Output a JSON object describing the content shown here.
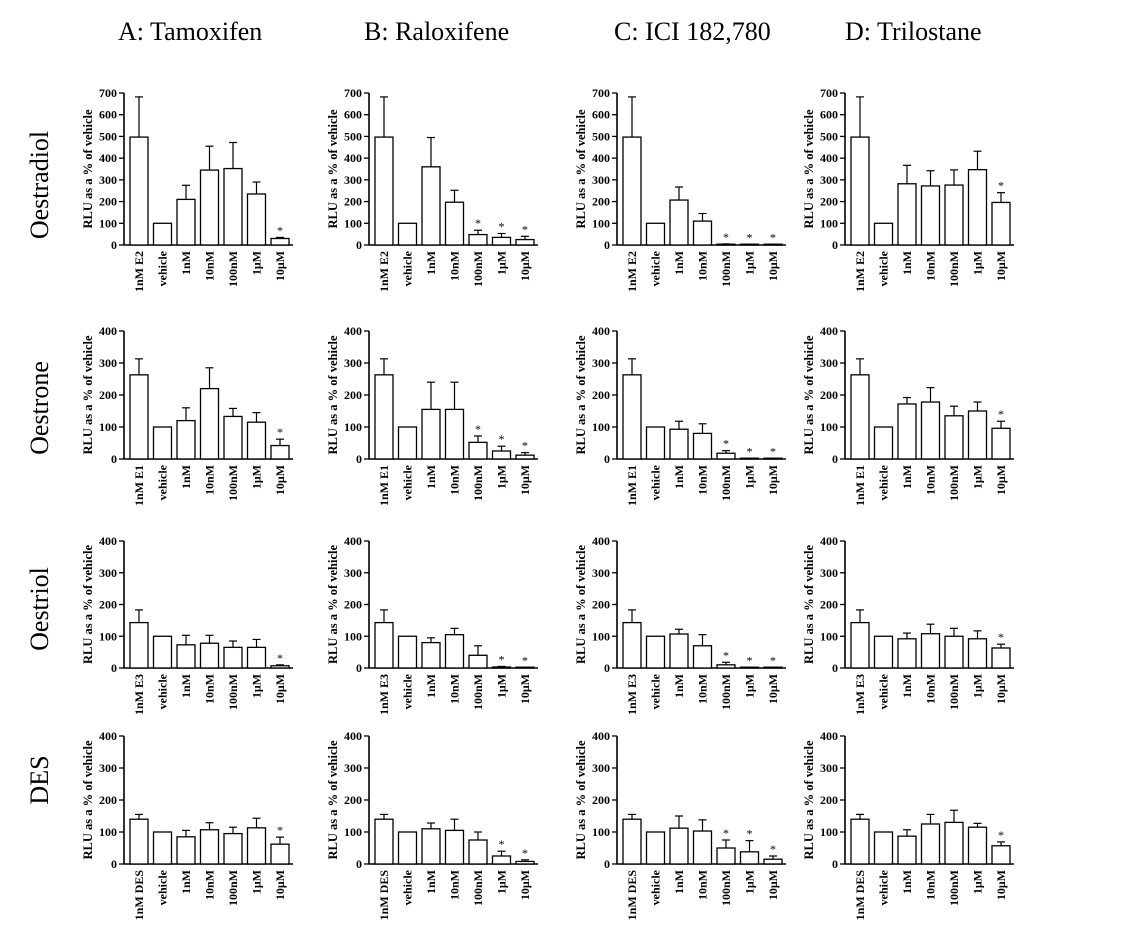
{
  "figure": {
    "columns": [
      "A: Tamoxifen",
      "B: Raloxifene",
      "C: ICI 182,780",
      "D: Trilostane"
    ],
    "rows": [
      "Oestradiol",
      "Oestrone",
      "Oestriol",
      "DES"
    ],
    "ylabel": "RLU as a % of vehicle"
  },
  "chart_data": [
    {
      "type": "bar",
      "panel": "A1",
      "row": "Oestradiol",
      "column": "A: Tamoxifen",
      "categories": [
        "1nM E2",
        "vehicle",
        "1nM",
        "10nM",
        "100nM",
        "1μM",
        "10μM"
      ],
      "values": [
        497,
        100,
        210,
        345,
        352,
        235,
        30
      ],
      "errors": [
        185,
        0,
        65,
        110,
        120,
        55,
        5
      ],
      "significant": [
        false,
        false,
        false,
        false,
        false,
        false,
        true
      ],
      "ylim": [
        0,
        700
      ],
      "yticks": [
        0,
        100,
        200,
        300,
        400,
        500,
        600,
        700
      ],
      "ylabel": "RLU as a % of vehicle"
    },
    {
      "type": "bar",
      "panel": "B1",
      "row": "Oestradiol",
      "column": "B: Raloxifene",
      "categories": [
        "1nM E2",
        "vehicle",
        "1nM",
        "10nM",
        "100nM",
        "1μM",
        "10μM"
      ],
      "values": [
        497,
        100,
        360,
        197,
        48,
        35,
        25
      ],
      "errors": [
        185,
        0,
        135,
        55,
        20,
        18,
        15
      ],
      "significant": [
        false,
        false,
        false,
        false,
        true,
        true,
        true
      ],
      "ylim": [
        0,
        700
      ],
      "yticks": [
        0,
        100,
        200,
        300,
        400,
        500,
        600,
        700
      ],
      "ylabel": "RLU as a % of vehicle"
    },
    {
      "type": "bar",
      "panel": "C1",
      "row": "Oestradiol",
      "column": "C: ICI 182,780",
      "categories": [
        "1nM E2",
        "vehicle",
        "1nM",
        "10nM",
        "100nM",
        "1μM",
        "10μM"
      ],
      "values": [
        497,
        100,
        207,
        110,
        3,
        2,
        2
      ],
      "errors": [
        185,
        0,
        60,
        35,
        2,
        1,
        1
      ],
      "significant": [
        false,
        false,
        false,
        false,
        true,
        true,
        true
      ],
      "ylim": [
        0,
        700
      ],
      "yticks": [
        0,
        100,
        200,
        300,
        400,
        500,
        600,
        700
      ],
      "ylabel": "RLU as a % of vehicle"
    },
    {
      "type": "bar",
      "panel": "D1",
      "row": "Oestradiol",
      "column": "D: Trilostane",
      "categories": [
        "1nM E2",
        "vehicle",
        "1nM",
        "10nM",
        "100nM",
        "1μM",
        "10μM"
      ],
      "values": [
        497,
        100,
        282,
        272,
        276,
        347,
        196
      ],
      "errors": [
        185,
        0,
        85,
        70,
        70,
        85,
        45
      ],
      "significant": [
        false,
        false,
        false,
        false,
        false,
        false,
        true
      ],
      "ylim": [
        0,
        700
      ],
      "yticks": [
        0,
        100,
        200,
        300,
        400,
        500,
        600,
        700
      ],
      "ylabel": "RLU as a % of vehicle"
    },
    {
      "type": "bar",
      "panel": "A2",
      "row": "Oestrone",
      "column": "A: Tamoxifen",
      "categories": [
        "1nM E1",
        "vehicle",
        "1nM",
        "10nM",
        "100nM",
        "1μM",
        "10μM"
      ],
      "values": [
        263,
        100,
        120,
        220,
        133,
        115,
        42
      ],
      "errors": [
        50,
        0,
        40,
        65,
        25,
        30,
        20
      ],
      "significant": [
        false,
        false,
        false,
        false,
        false,
        false,
        true
      ],
      "ylim": [
        0,
        400
      ],
      "yticks": [
        0,
        100,
        200,
        300,
        400
      ],
      "ylabel": "RLU as a % of vehicle"
    },
    {
      "type": "bar",
      "panel": "B2",
      "row": "Oestrone",
      "column": "B: Raloxifene",
      "categories": [
        "1nM E1",
        "vehicle",
        "1nM",
        "10nM",
        "100nM",
        "1μM",
        "10μM"
      ],
      "values": [
        263,
        100,
        155,
        155,
        52,
        25,
        12
      ],
      "errors": [
        50,
        0,
        85,
        85,
        20,
        15,
        8
      ],
      "significant": [
        false,
        false,
        false,
        false,
        true,
        true,
        true
      ],
      "ylim": [
        0,
        400
      ],
      "yticks": [
        0,
        100,
        200,
        300,
        400
      ],
      "ylabel": "RLU as a % of vehicle"
    },
    {
      "type": "bar",
      "panel": "C2",
      "row": "Oestrone",
      "column": "C: ICI 182,780",
      "categories": [
        "1nM E1",
        "vehicle",
        "1nM",
        "10nM",
        "100nM",
        "1μM",
        "10μM"
      ],
      "values": [
        263,
        100,
        93,
        80,
        18,
        1,
        1
      ],
      "errors": [
        50,
        0,
        25,
        30,
        8,
        1,
        1
      ],
      "significant": [
        false,
        false,
        false,
        false,
        true,
        true,
        true
      ],
      "ylim": [
        0,
        400
      ],
      "yticks": [
        0,
        100,
        200,
        300,
        400
      ],
      "ylabel": "RLU as a % of vehicle"
    },
    {
      "type": "bar",
      "panel": "D2",
      "row": "Oestrone",
      "column": "D: Trilostane",
      "categories": [
        "1nM E1",
        "vehicle",
        "1nM",
        "10nM",
        "100nM",
        "1μM",
        "10μM"
      ],
      "values": [
        263,
        100,
        172,
        178,
        135,
        150,
        96
      ],
      "errors": [
        50,
        0,
        20,
        45,
        30,
        28,
        22
      ],
      "significant": [
        false,
        false,
        false,
        false,
        false,
        false,
        true
      ],
      "ylim": [
        0,
        400
      ],
      "yticks": [
        0,
        100,
        200,
        300,
        400
      ],
      "ylabel": "RLU as a % of vehicle"
    },
    {
      "type": "bar",
      "panel": "A3",
      "row": "Oestriol",
      "column": "A: Tamoxifen",
      "categories": [
        "1nM E3",
        "vehicle",
        "1nM",
        "10nM",
        "100nM",
        "1μM",
        "10μM"
      ],
      "values": [
        143,
        100,
        73,
        78,
        65,
        65,
        7
      ],
      "errors": [
        40,
        0,
        30,
        25,
        20,
        25,
        3
      ],
      "significant": [
        false,
        false,
        false,
        false,
        false,
        false,
        true
      ],
      "ylim": [
        0,
        400
      ],
      "yticks": [
        0,
        100,
        200,
        300,
        400
      ],
      "ylabel": "RLU as a % of vehicle"
    },
    {
      "type": "bar",
      "panel": "B3",
      "row": "Oestriol",
      "column": "B: Raloxifene",
      "categories": [
        "1nM E3",
        "vehicle",
        "1nM",
        "10nM",
        "100nM",
        "1μM",
        "10μM"
      ],
      "values": [
        143,
        100,
        80,
        105,
        40,
        3,
        1
      ],
      "errors": [
        40,
        0,
        15,
        20,
        30,
        2,
        1
      ],
      "significant": [
        false,
        false,
        false,
        false,
        false,
        true,
        true
      ],
      "ylim": [
        0,
        400
      ],
      "yticks": [
        0,
        100,
        200,
        300,
        400
      ],
      "ylabel": "RLU as a % of vehicle"
    },
    {
      "type": "bar",
      "panel": "C3",
      "row": "Oestriol",
      "column": "C: ICI 182,780",
      "categories": [
        "1nM E3",
        "vehicle",
        "1nM",
        "10nM",
        "100nM",
        "1μM",
        "10μM"
      ],
      "values": [
        143,
        100,
        107,
        70,
        10,
        1,
        1
      ],
      "errors": [
        40,
        0,
        15,
        35,
        8,
        1,
        1
      ],
      "significant": [
        false,
        false,
        false,
        false,
        true,
        true,
        true
      ],
      "ylim": [
        0,
        400
      ],
      "yticks": [
        0,
        100,
        200,
        300,
        400
      ],
      "ylabel": "RLU as a % of vehicle"
    },
    {
      "type": "bar",
      "panel": "D3",
      "row": "Oestriol",
      "column": "D: Trilostane",
      "categories": [
        "1nM E3",
        "vehicle",
        "1nM",
        "10nM",
        "100nM",
        "1μM",
        "10μM"
      ],
      "values": [
        143,
        100,
        92,
        108,
        100,
        92,
        63
      ],
      "errors": [
        40,
        0,
        18,
        30,
        25,
        25,
        12
      ],
      "significant": [
        false,
        false,
        false,
        false,
        false,
        false,
        true
      ],
      "ylim": [
        0,
        400
      ],
      "yticks": [
        0,
        100,
        200,
        300,
        400
      ],
      "ylabel": "RLU as a % of vehicle"
    },
    {
      "type": "bar",
      "panel": "A4",
      "row": "DES",
      "column": "A: Tamoxifen",
      "categories": [
        "1nM DES",
        "vehicle",
        "1nM",
        "10nM",
        "100nM",
        "1μM",
        "10μM"
      ],
      "values": [
        140,
        100,
        85,
        107,
        95,
        113,
        62
      ],
      "errors": [
        15,
        0,
        20,
        22,
        20,
        30,
        22
      ],
      "significant": [
        false,
        false,
        false,
        false,
        false,
        false,
        true
      ],
      "ylim": [
        0,
        400
      ],
      "yticks": [
        0,
        100,
        200,
        300,
        400
      ],
      "ylabel": "RLU as a % of vehicle"
    },
    {
      "type": "bar",
      "panel": "B4",
      "row": "DES",
      "column": "B: Raloxifene",
      "categories": [
        "1nM DES",
        "vehicle",
        "1nM",
        "10nM",
        "100nM",
        "1μM",
        "10μM"
      ],
      "values": [
        140,
        100,
        110,
        105,
        75,
        25,
        8
      ],
      "errors": [
        15,
        0,
        18,
        35,
        25,
        15,
        5
      ],
      "significant": [
        false,
        false,
        false,
        false,
        false,
        true,
        true
      ],
      "ylim": [
        0,
        400
      ],
      "yticks": [
        0,
        100,
        200,
        300,
        400
      ],
      "ylabel": "RLU as a % of vehicle"
    },
    {
      "type": "bar",
      "panel": "C4",
      "row": "DES",
      "column": "C: ICI 182,780",
      "categories": [
        "1nM DES",
        "vehicle",
        "1nM",
        "10nM",
        "100nM",
        "1μM",
        "10μM"
      ],
      "values": [
        140,
        100,
        112,
        103,
        50,
        38,
        15
      ],
      "errors": [
        15,
        0,
        38,
        35,
        25,
        35,
        10
      ],
      "significant": [
        false,
        false,
        false,
        false,
        true,
        true,
        true
      ],
      "ylim": [
        0,
        400
      ],
      "yticks": [
        0,
        100,
        200,
        300,
        400
      ],
      "ylabel": "RLU as a % of vehicle"
    },
    {
      "type": "bar",
      "panel": "D4",
      "row": "DES",
      "column": "D: Trilostane",
      "categories": [
        "1nM DES",
        "vehicle",
        "1nM",
        "10nM",
        "100nM",
        "1μM",
        "10μM"
      ],
      "values": [
        140,
        100,
        87,
        125,
        130,
        115,
        57
      ],
      "errors": [
        15,
        0,
        20,
        30,
        38,
        12,
        12
      ],
      "significant": [
        false,
        false,
        false,
        false,
        false,
        false,
        true
      ],
      "ylim": [
        0,
        400
      ],
      "yticks": [
        0,
        100,
        200,
        300,
        400
      ],
      "ylabel": "RLU as a % of vehicle"
    }
  ]
}
